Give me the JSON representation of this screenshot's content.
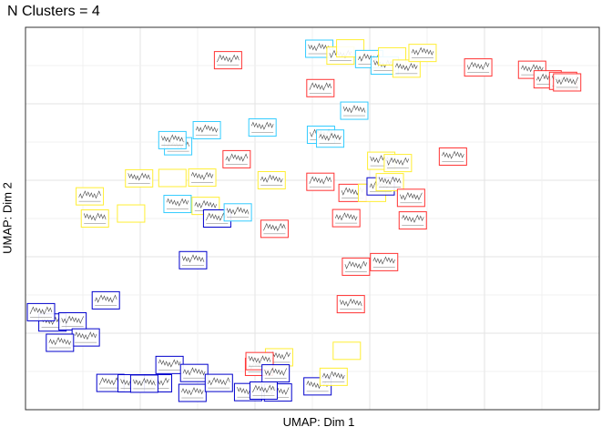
{
  "chart_data": {
    "type": "scatter",
    "title": "N Clusters = 4",
    "xlabel": "UMAP: Dim 1",
    "ylabel": "UMAP: Dim 2",
    "xlim": [
      0,
      100
    ],
    "ylim": [
      0,
      100
    ],
    "grid": true,
    "legend": "none",
    "marker": "thumbnail-box",
    "cluster_colors": [
      "#0000cc",
      "#33ccff",
      "#ff3333",
      "#ffee33"
    ],
    "points": [
      {
        "x": 35.3,
        "y": 91.4,
        "c": 2
      },
      {
        "x": 51.2,
        "y": 94.4,
        "c": 1
      },
      {
        "x": 54.9,
        "y": 92.6,
        "c": 3
      },
      {
        "x": 56.6,
        "y": 94.5,
        "c": 3
      },
      {
        "x": 59.9,
        "y": 91.7,
        "c": 1
      },
      {
        "x": 62.6,
        "y": 90.0,
        "c": 1
      },
      {
        "x": 63.9,
        "y": 92.4,
        "c": 3
      },
      {
        "x": 66.4,
        "y": 89.2,
        "c": 3
      },
      {
        "x": 69.2,
        "y": 93.3,
        "c": 3
      },
      {
        "x": 51.4,
        "y": 84.1,
        "c": 2
      },
      {
        "x": 57.3,
        "y": 78.2,
        "c": 1
      },
      {
        "x": 78.9,
        "y": 89.5,
        "c": 2
      },
      {
        "x": 88.3,
        "y": 88.9,
        "c": 2
      },
      {
        "x": 91.0,
        "y": 86.4,
        "c": 2
      },
      {
        "x": 93.7,
        "y": 86.0,
        "c": 2
      },
      {
        "x": 94.4,
        "y": 85.6,
        "c": 2
      },
      {
        "x": 41.3,
        "y": 73.8,
        "c": 1
      },
      {
        "x": 31.6,
        "y": 73.1,
        "c": 1
      },
      {
        "x": 26.6,
        "y": 68.9,
        "c": 1
      },
      {
        "x": 25.6,
        "y": 70.5,
        "c": 1
      },
      {
        "x": 51.5,
        "y": 71.9,
        "c": 1
      },
      {
        "x": 53.1,
        "y": 70.9,
        "c": 1
      },
      {
        "x": 36.8,
        "y": 65.5,
        "c": 2
      },
      {
        "x": 19.8,
        "y": 60.5,
        "c": 3
      },
      {
        "x": 25.6,
        "y": 60.6,
        "c": 3
      },
      {
        "x": 30.8,
        "y": 60.7,
        "c": 3
      },
      {
        "x": 42.9,
        "y": 60.0,
        "c": 3
      },
      {
        "x": 51.4,
        "y": 59.6,
        "c": 2
      },
      {
        "x": 62.0,
        "y": 65.1,
        "c": 3
      },
      {
        "x": 64.9,
        "y": 64.5,
        "c": 3
      },
      {
        "x": 74.5,
        "y": 66.2,
        "c": 2
      },
      {
        "x": 11.2,
        "y": 55.8,
        "c": 3
      },
      {
        "x": 12.1,
        "y": 50.0,
        "c": 3
      },
      {
        "x": 18.4,
        "y": 51.3,
        "c": 3
      },
      {
        "x": 26.5,
        "y": 53.8,
        "c": 1
      },
      {
        "x": 31.4,
        "y": 53.3,
        "c": 3
      },
      {
        "x": 33.4,
        "y": 50.0,
        "c": 0
      },
      {
        "x": 37.0,
        "y": 51.6,
        "c": 1
      },
      {
        "x": 57.0,
        "y": 56.7,
        "c": 2
      },
      {
        "x": 60.4,
        "y": 56.7,
        "c": 3
      },
      {
        "x": 61.9,
        "y": 58.4,
        "c": 0
      },
      {
        "x": 63.5,
        "y": 59.5,
        "c": 3
      },
      {
        "x": 67.2,
        "y": 55.4,
        "c": 2
      },
      {
        "x": 67.5,
        "y": 49.5,
        "c": 2
      },
      {
        "x": 55.9,
        "y": 50.1,
        "c": 2
      },
      {
        "x": 43.4,
        "y": 47.3,
        "c": 2
      },
      {
        "x": 29.2,
        "y": 39.1,
        "c": 0
      },
      {
        "x": 57.6,
        "y": 37.4,
        "c": 2
      },
      {
        "x": 62.5,
        "y": 38.6,
        "c": 2
      },
      {
        "x": 14.0,
        "y": 28.6,
        "c": 0
      },
      {
        "x": 4.7,
        "y": 22.8,
        "c": 0
      },
      {
        "x": 8.2,
        "y": 23.1,
        "c": 0
      },
      {
        "x": 10.5,
        "y": 18.9,
        "c": 0
      },
      {
        "x": 6.0,
        "y": 17.5,
        "c": 0
      },
      {
        "x": 2.7,
        "y": 25.5,
        "c": 0
      },
      {
        "x": 56.7,
        "y": 27.6,
        "c": 2
      },
      {
        "x": 44.2,
        "y": 13.7,
        "c": 3
      },
      {
        "x": 56.0,
        "y": 15.4,
        "c": 3
      },
      {
        "x": 40.7,
        "y": 11.2,
        "c": 2
      },
      {
        "x": 40.8,
        "y": 12.7,
        "c": 2
      },
      {
        "x": 43.6,
        "y": 9.5,
        "c": 0
      },
      {
        "x": 25.1,
        "y": 11.7,
        "c": 0
      },
      {
        "x": 29.4,
        "y": 9.6,
        "c": 0
      },
      {
        "x": 14.8,
        "y": 7.0,
        "c": 0
      },
      {
        "x": 18.5,
        "y": 6.9,
        "c": 0
      },
      {
        "x": 23.1,
        "y": 6.9,
        "c": 0
      },
      {
        "x": 29.1,
        "y": 4.4,
        "c": 0
      },
      {
        "x": 33.7,
        "y": 7.0,
        "c": 0
      },
      {
        "x": 38.8,
        "y": 4.6,
        "c": 0
      },
      {
        "x": 44.0,
        "y": 4.5,
        "c": 0
      },
      {
        "x": 50.9,
        "y": 6.1,
        "c": 0
      },
      {
        "x": 53.7,
        "y": 8.6,
        "c": 3
      },
      {
        "x": 41.5,
        "y": 5.0,
        "c": 0
      },
      {
        "x": 20.7,
        "y": 6.8,
        "c": 0
      }
    ]
  }
}
